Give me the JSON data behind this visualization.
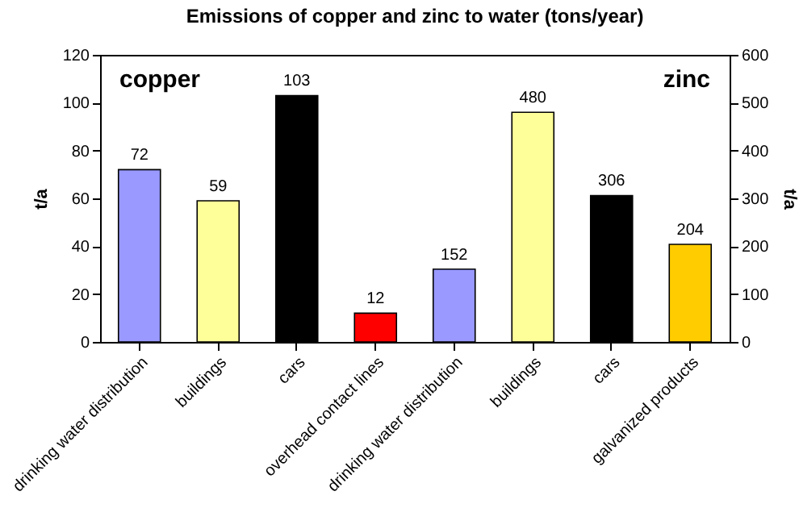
{
  "chart_data": {
    "type": "bar",
    "title": "Emissions of copper and zinc to water (tons/year)",
    "ylabel": "t/a",
    "y2label": "t/a",
    "categories": [
      "drinking water distribution",
      "buildings",
      "cars",
      "overhead contact lines",
      "drinking water distribution",
      "buildings",
      "cars",
      "galvanized products"
    ],
    "series": [
      {
        "values": [
          72,
          59,
          103,
          12,
          null,
          null,
          null,
          null
        ],
        "colors": [
          "#9999ff",
          "#ffff99",
          "#000000",
          "#ff0000",
          null,
          null,
          null,
          null
        ]
      },
      {
        "axis": "y2",
        "values": [
          null,
          null,
          null,
          null,
          152,
          480,
          306,
          204
        ],
        "colors": [
          null,
          null,
          null,
          null,
          "#9999ff",
          "#ffff99",
          "#000000",
          "#ffcc00"
        ]
      }
    ],
    "ylim": [
      0,
      120
    ],
    "yticks": [
      0,
      20,
      40,
      60,
      80,
      100,
      120
    ],
    "y2lim": [
      0,
      600
    ],
    "y2ticks": [
      0,
      100,
      200,
      300,
      400,
      500,
      600
    ],
    "annotations": [
      "copper",
      "zinc"
    ],
    "grid": false,
    "data_labels": true
  }
}
